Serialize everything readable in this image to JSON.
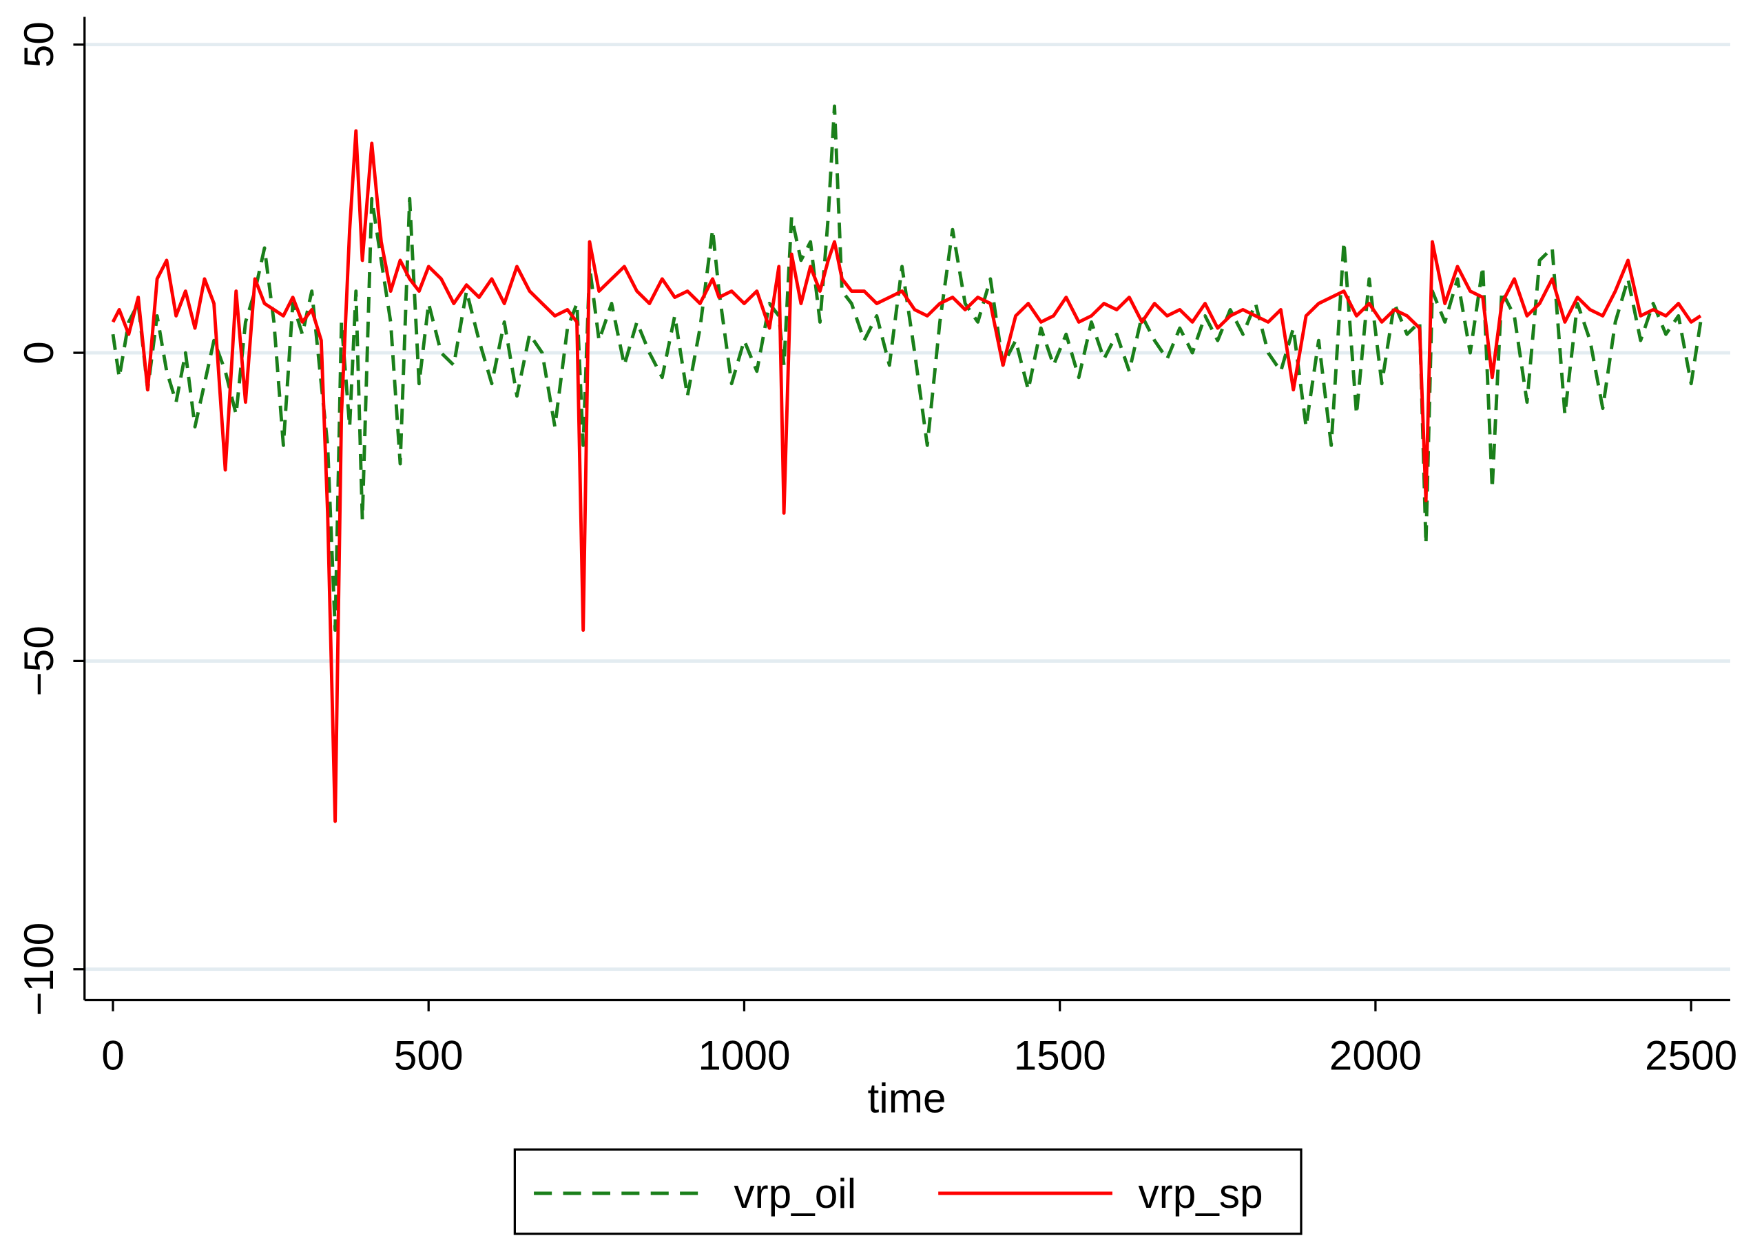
{
  "chart_data": {
    "type": "line",
    "x_label": "time",
    "x": [
      0,
      10,
      25,
      40,
      55,
      70,
      85,
      100,
      115,
      130,
      145,
      160,
      178,
      195,
      210,
      225,
      240,
      255,
      270,
      285,
      300,
      315,
      330,
      340,
      352,
      362,
      375,
      385,
      395,
      410,
      425,
      440,
      455,
      470,
      485,
      500,
      520,
      540,
      560,
      580,
      600,
      620,
      640,
      660,
      680,
      700,
      720,
      735,
      745,
      755,
      770,
      790,
      810,
      830,
      850,
      870,
      890,
      910,
      930,
      950,
      960,
      980,
      1000,
      1020,
      1040,
      1055,
      1063,
      1075,
      1090,
      1105,
      1120,
      1133,
      1143,
      1155,
      1170,
      1190,
      1210,
      1230,
      1250,
      1270,
      1290,
      1310,
      1330,
      1350,
      1370,
      1390,
      1410,
      1430,
      1450,
      1470,
      1490,
      1510,
      1530,
      1550,
      1570,
      1590,
      1610,
      1630,
      1650,
      1670,
      1690,
      1710,
      1730,
      1750,
      1770,
      1790,
      1810,
      1830,
      1850,
      1870,
      1890,
      1910,
      1930,
      1950,
      1970,
      1990,
      2010,
      2030,
      2050,
      2070,
      2080,
      2090,
      2110,
      2130,
      2150,
      2170,
      2185,
      2200,
      2220,
      2240,
      2260,
      2280,
      2300,
      2320,
      2340,
      2360,
      2380,
      2400,
      2420,
      2440,
      2460,
      2480,
      2500,
      2515
    ],
    "series": [
      {
        "name": "vrp_oil",
        "color": "#1a7f1a",
        "style": "dashed",
        "values": [
          3,
          -4,
          5,
          8,
          -6,
          6,
          -3,
          -8,
          0,
          -12,
          -5,
          2,
          -3,
          -10,
          5,
          10,
          17,
          5,
          -15,
          8,
          3,
          10,
          -5,
          -15,
          -45,
          5,
          -12,
          10,
          -27,
          25,
          15,
          5,
          -18,
          25,
          -5,
          8,
          0,
          -2,
          10,
          2,
          -5,
          5,
          -7,
          3,
          0,
          -12,
          4,
          8,
          -15,
          14,
          2,
          8,
          -2,
          5,
          0,
          -4,
          6,
          -7,
          4,
          20,
          10,
          -5,
          2,
          -3,
          8,
          6,
          -2,
          22,
          15,
          18,
          5,
          22,
          40,
          10,
          8,
          2,
          6,
          -2,
          14,
          0,
          -15,
          5,
          20,
          8,
          5,
          12,
          -2,
          2,
          -6,
          4,
          -2,
          3,
          -4,
          5,
          -1,
          3,
          -3,
          6,
          2,
          -1,
          4,
          0,
          6,
          2,
          7,
          3,
          8,
          0,
          -3,
          4,
          -12,
          2,
          -15,
          18,
          -10,
          12,
          -5,
          8,
          3,
          5,
          -31,
          10,
          5,
          12,
          0,
          14,
          -22,
          10,
          6,
          -8,
          15,
          17,
          -10,
          8,
          2,
          -9,
          5,
          12,
          2,
          8,
          3,
          6,
          -5,
          5
        ]
      },
      {
        "name": "vrp_sp",
        "color": "#ff0000",
        "style": "solid",
        "values": [
          5,
          7,
          3,
          9,
          -6,
          12,
          15,
          6,
          10,
          4,
          12,
          8,
          -19,
          10,
          -8,
          12,
          8,
          7,
          6,
          9,
          5,
          7,
          2,
          -26,
          -76,
          -10,
          20,
          36,
          15,
          34,
          18,
          10,
          15,
          12,
          10,
          14,
          12,
          8,
          11,
          9,
          12,
          8,
          14,
          10,
          8,
          6,
          7,
          5,
          -45,
          18,
          10,
          12,
          14,
          10,
          8,
          12,
          9,
          10,
          8,
          12,
          9,
          10,
          8,
          10,
          4,
          14,
          -26,
          16,
          8,
          14,
          10,
          15,
          18,
          12,
          10,
          10,
          8,
          9,
          10,
          7,
          6,
          8,
          9,
          7,
          9,
          8,
          -2,
          6,
          8,
          5,
          6,
          9,
          5,
          6,
          8,
          7,
          9,
          5,
          8,
          6,
          7,
          5,
          8,
          4,
          6,
          7,
          6,
          5,
          7,
          -6,
          6,
          8,
          9,
          10,
          6,
          8,
          5,
          7,
          6,
          4,
          -24,
          18,
          8,
          14,
          10,
          9,
          -4,
          8,
          12,
          6,
          8,
          12,
          5,
          9,
          7,
          6,
          10,
          15,
          6,
          7,
          6,
          8,
          5,
          6
        ]
      }
    ],
    "xlim": [
      -45,
      2562
    ],
    "xticks": [
      0,
      500,
      1000,
      1500,
      2000,
      2500
    ],
    "ylim": [
      -105,
      54.5
    ],
    "yticks": [
      {
        "value": -100,
        "label": "−100"
      },
      {
        "value": -50,
        "label": "−50"
      },
      0,
      50
    ],
    "grid": true,
    "legend": "bottom"
  }
}
